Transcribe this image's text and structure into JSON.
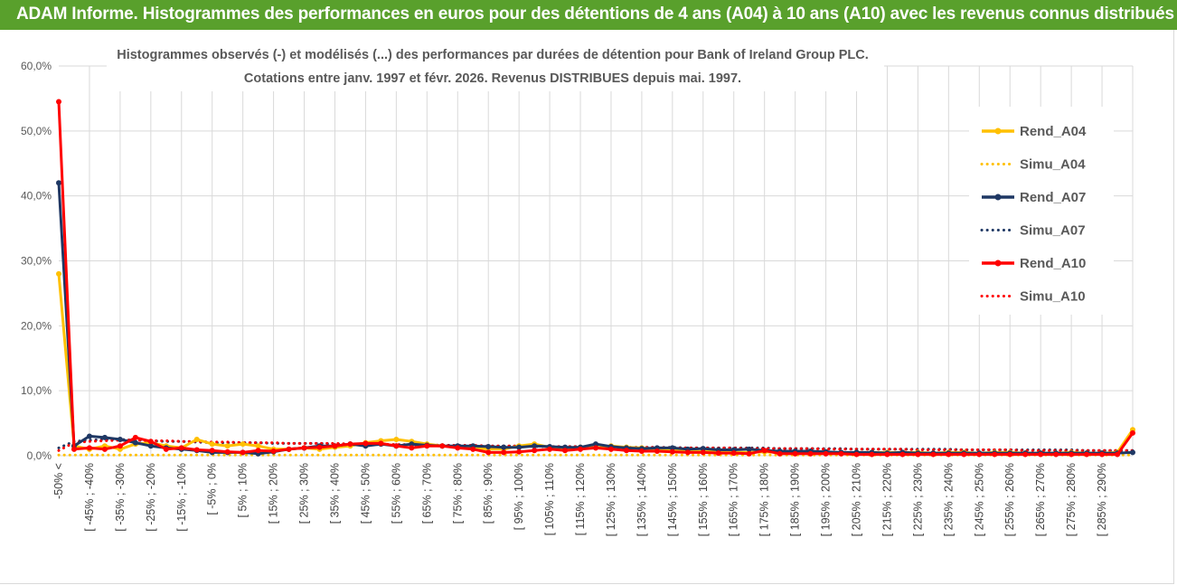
{
  "header": {
    "title": "ADAM Informe. Histogrammes des performances en euros pour des détentions de 4 ans (A04) à 10 ans (A10) avec les revenus connus distribués"
  },
  "colors": {
    "header_bg": "#59a02c",
    "A04": "#ffc000",
    "A07": "#1f3864",
    "A10": "#ff0000",
    "grid": "#d9d9d9"
  },
  "chart_data": {
    "type": "line",
    "title": [
      "Histogrammes observés (-) et modélisés (...) des performances par durées de détention pour Bank of Ireland Group PLC.",
      "Cotations entre janv. 1997 et févr. 2026. Revenus DISTRIBUES depuis mai. 1997."
    ],
    "ylim": [
      0,
      60
    ],
    "yticks": [
      "0,0%",
      "10,0%",
      "20,0%",
      "30,0%",
      "40,0%",
      "50,0%",
      "60,0%"
    ],
    "grid": true,
    "legend_position": "right",
    "x_labels_shown": [
      "-50% <",
      "[ -45% ; -40%",
      "[ -35% ; -30%",
      "[ -25% ; -20%",
      "[ -15% ; -10%",
      "[ -5% ; 0%",
      "[ 5% ; 10%",
      "[ 15% ; 20%",
      "[ 25% ; 30%",
      "[ 35% ; 40%",
      "[ 45% ; 50%",
      "[ 55% ; 60%",
      "[ 65% ; 70%",
      "[ 75% ; 80%",
      "[ 85% ; 90%",
      "[ 95% ; 100%",
      "[ 105% ; 110%",
      "[ 115% ; 120%",
      "[ 125% ; 130%",
      "[ 135% ; 140%",
      "[ 145% ; 150%",
      "[ 155% ; 160%",
      "[ 165% ; 170%",
      "[ 175% ; 180%",
      "[ 185% ; 190%",
      "[ 195% ; 200%",
      "[ 205% ; 210%",
      "[ 215% ; 220%",
      "[ 225% ; 230%",
      "[ 235% ; 240%",
      "[ 245% ; 250%",
      "[ 255% ; 260%",
      "[ 265% ; 270%",
      "[ 275% ; 280%",
      "[ 285% ; 290%"
    ],
    "n_points": 71,
    "series": [
      {
        "name": "Rend_A04",
        "style": "solid",
        "color": "#ffc000",
        "values": [
          28.0,
          1.5,
          1.0,
          1.5,
          1.0,
          1.8,
          2.0,
          1.5,
          1.2,
          2.5,
          1.8,
          1.5,
          1.8,
          1.5,
          1.0,
          1.0,
          1.2,
          1.0,
          1.3,
          1.5,
          2.0,
          2.3,
          2.5,
          2.2,
          1.8,
          1.5,
          1.4,
          1.2,
          1.0,
          1.0,
          1.5,
          1.8,
          1.3,
          1.2,
          1.3,
          1.2,
          1.5,
          1.3,
          1.2,
          1.0,
          1.0,
          0.8,
          0.6,
          0.8,
          0.5,
          0.5,
          0.6,
          0.5,
          0.5,
          0.6,
          0.5,
          0.4,
          0.5,
          0.5,
          0.5,
          0.5,
          0.5,
          0.4,
          0.5,
          0.5,
          0.4,
          0.5,
          0.5,
          0.4,
          0.4,
          0.4,
          0.5,
          0.4,
          0.4,
          0.5,
          4.0
        ]
      },
      {
        "name": "Simu_A04",
        "style": "dotted",
        "color": "#ffc000",
        "values": [
          0.1,
          0.1,
          0.1,
          0.1,
          0.1,
          0.1,
          0.1,
          0.1,
          0.1,
          0.1,
          0.1,
          0.1,
          0.1,
          0.1,
          0.1,
          0.1,
          0.1,
          0.1,
          0.1,
          0.1,
          0.1,
          0.1,
          0.1,
          0.1,
          0.1,
          0.1,
          0.1,
          0.1,
          0.1,
          0.1,
          0.1,
          0.1,
          0.1,
          0.1,
          0.1,
          0.1,
          0.1,
          0.1,
          0.1,
          0.1,
          0.1,
          0.1,
          0.1,
          0.1,
          0.1,
          0.1,
          0.1,
          0.1,
          0.1,
          0.1,
          0.1,
          0.1,
          0.1,
          0.1,
          0.1,
          0.1,
          0.1,
          0.1,
          0.1,
          0.1,
          0.1,
          0.1,
          0.1,
          0.1,
          0.1,
          0.1,
          0.1,
          0.1,
          0.1,
          0.1,
          0.1
        ]
      },
      {
        "name": "Rend_A07",
        "style": "solid",
        "color": "#1f3864",
        "values": [
          42.0,
          1.5,
          3.0,
          2.8,
          2.5,
          2.0,
          1.5,
          1.2,
          1.0,
          0.8,
          0.5,
          0.5,
          0.5,
          0.3,
          0.6,
          1.0,
          1.2,
          1.5,
          1.5,
          1.8,
          1.5,
          1.8,
          1.5,
          1.8,
          1.6,
          1.5,
          1.5,
          1.5,
          1.4,
          1.3,
          1.3,
          1.5,
          1.4,
          1.3,
          1.3,
          1.8,
          1.4,
          1.2,
          1.1,
          1.2,
          1.2,
          1.0,
          1.1,
          0.9,
          0.9,
          1.0,
          0.8,
          0.7,
          0.7,
          0.7,
          0.6,
          0.5,
          0.5,
          0.5,
          0.4,
          0.5,
          0.4,
          0.4,
          0.4,
          0.4,
          0.4,
          0.4,
          0.4,
          0.4,
          0.4,
          0.4,
          0.4,
          0.4,
          0.4,
          0.4,
          0.5
        ]
      },
      {
        "name": "Simu_A07",
        "style": "dotted",
        "color": "#1f3864",
        "values": [
          1.2,
          2.2,
          2.4,
          2.5,
          2.5,
          2.4,
          2.3,
          2.2,
          2.2,
          2.1,
          2.0,
          2.0,
          2.0,
          2.0,
          1.9,
          1.9,
          1.9,
          1.9,
          1.8,
          1.8,
          1.8,
          1.7,
          1.7,
          1.7,
          1.6,
          1.6,
          1.6,
          1.5,
          1.5,
          1.5,
          1.5,
          1.4,
          1.4,
          1.4,
          1.4,
          1.3,
          1.3,
          1.3,
          1.3,
          1.3,
          1.3,
          1.2,
          1.2,
          1.2,
          1.2,
          1.2,
          1.2,
          1.1,
          1.1,
          1.1,
          1.1,
          1.1,
          1.0,
          1.0,
          1.0,
          1.0,
          1.0,
          1.0,
          1.0,
          0.9,
          0.9,
          0.9,
          0.9,
          0.9,
          0.9,
          0.9,
          0.9,
          0.8,
          0.8,
          0.8,
          0.8
        ]
      },
      {
        "name": "Rend_A10",
        "style": "solid",
        "color": "#ff0000",
        "values": [
          54.5,
          1.0,
          1.2,
          1.0,
          1.5,
          2.8,
          2.2,
          1.0,
          1.2,
          0.9,
          0.8,
          0.6,
          0.5,
          0.8,
          0.7,
          1.0,
          1.2,
          1.3,
          1.5,
          1.8,
          1.9,
          1.9,
          1.5,
          1.2,
          1.5,
          1.5,
          1.2,
          1.0,
          0.5,
          0.5,
          0.6,
          0.8,
          1.0,
          0.8,
          1.0,
          1.2,
          1.0,
          0.8,
          0.7,
          0.7,
          0.6,
          0.5,
          0.5,
          0.4,
          0.4,
          0.3,
          0.8,
          0.3,
          0.3,
          0.3,
          0.3,
          0.3,
          0.2,
          0.2,
          0.2,
          0.2,
          0.2,
          0.2,
          0.2,
          0.2,
          0.2,
          0.2,
          0.2,
          0.2,
          0.2,
          0.2,
          0.2,
          0.2,
          0.2,
          0.2,
          3.5
        ]
      },
      {
        "name": "Simu_A10",
        "style": "dotted",
        "color": "#ff0000",
        "values": [
          0.8,
          2.0,
          2.2,
          2.3,
          2.4,
          2.4,
          2.3,
          2.3,
          2.2,
          2.2,
          2.1,
          2.1,
          2.0,
          2.0,
          2.0,
          1.9,
          1.9,
          1.9,
          1.9,
          1.8,
          1.8,
          1.8,
          1.7,
          1.7,
          1.7,
          1.6,
          1.6,
          1.6,
          1.5,
          1.5,
          1.5,
          1.5,
          1.4,
          1.4,
          1.4,
          1.4,
          1.3,
          1.3,
          1.3,
          1.3,
          1.2,
          1.2,
          1.2,
          1.2,
          1.2,
          1.1,
          1.1,
          1.1,
          1.1,
          1.1,
          1.0,
          1.0,
          1.0,
          1.0,
          1.0,
          1.0,
          0.9,
          0.9,
          0.9,
          0.9,
          0.9,
          0.9,
          0.9,
          0.8,
          0.8,
          0.8,
          0.8,
          0.8,
          0.8,
          0.8,
          0.8
        ]
      }
    ]
  }
}
